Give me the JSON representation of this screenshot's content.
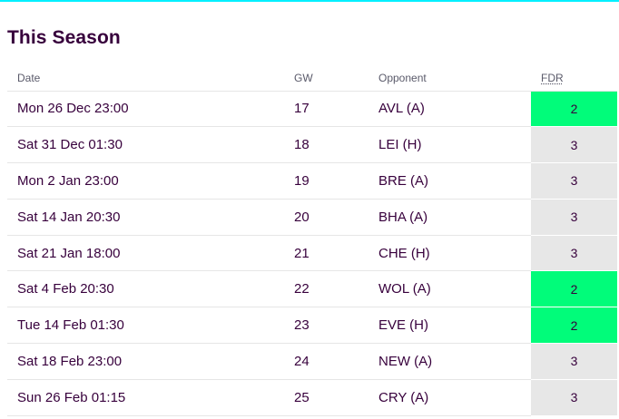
{
  "title": "This Season",
  "columns": {
    "date": "Date",
    "gw": "GW",
    "opponent": "Opponent",
    "fdr": "FDR"
  },
  "colors": {
    "title": "#37003c",
    "accent_top": "#05f0ff",
    "fdr_2": "#01fc7a",
    "fdr_3": "#e7e7e7"
  },
  "fixtures": [
    {
      "date": "Mon 26 Dec 23:00",
      "gw": "17",
      "opponent": "AVL (A)",
      "fdr": "2"
    },
    {
      "date": "Sat 31 Dec 01:30",
      "gw": "18",
      "opponent": "LEI (H)",
      "fdr": "3"
    },
    {
      "date": "Mon 2 Jan 23:00",
      "gw": "19",
      "opponent": "BRE (A)",
      "fdr": "3"
    },
    {
      "date": "Sat 14 Jan 20:30",
      "gw": "20",
      "opponent": "BHA (A)",
      "fdr": "3"
    },
    {
      "date": "Sat 21 Jan 18:00",
      "gw": "21",
      "opponent": "CHE (H)",
      "fdr": "3"
    },
    {
      "date": "Sat 4 Feb 20:30",
      "gw": "22",
      "opponent": "WOL (A)",
      "fdr": "2"
    },
    {
      "date": "Tue 14 Feb 01:30",
      "gw": "23",
      "opponent": "EVE (H)",
      "fdr": "2"
    },
    {
      "date": "Sat 18 Feb 23:00",
      "gw": "24",
      "opponent": "NEW (A)",
      "fdr": "3"
    },
    {
      "date": "Sun 26 Feb 01:15",
      "gw": "25",
      "opponent": "CRY (A)",
      "fdr": "3"
    }
  ]
}
